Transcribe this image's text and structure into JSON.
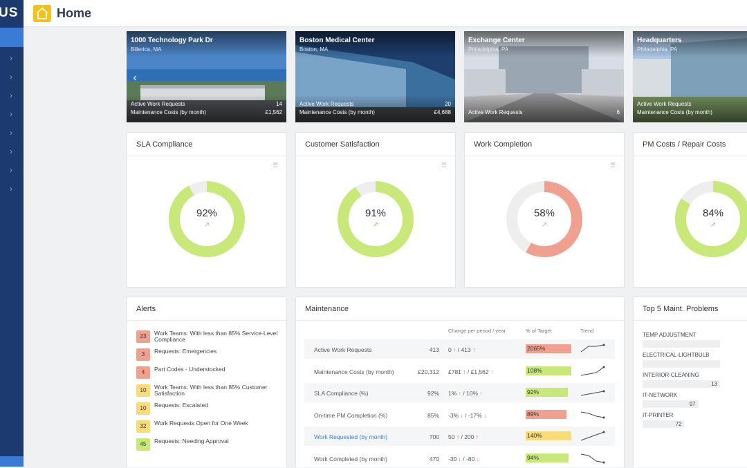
{
  "app": {
    "logo": "US",
    "page_title": "Home"
  },
  "buildings": [
    {
      "name": "1000 Technology Park Dr",
      "location": "Billerica, MA",
      "stats": [
        {
          "label": "Active Work Requests",
          "value": "14"
        },
        {
          "label": "Maintenance Costs (by month)",
          "value": "£1,562"
        }
      ]
    },
    {
      "name": "Boston Medical Center",
      "location": "Boston, MA",
      "stats": [
        {
          "label": "Active Work Requests",
          "value": "20"
        },
        {
          "label": "Maintenance Costs (by month)",
          "value": "£4,688"
        }
      ]
    },
    {
      "name": "Exchange Center",
      "location": "Philadelphia, PA",
      "stats": [
        {
          "label": "Active Work Requests",
          "value": "6"
        }
      ]
    },
    {
      "name": "Headquarters",
      "location": "Philadelphia, PA",
      "stats": [
        {
          "label": "Active Work Requests",
          "value": ""
        },
        {
          "label": "Maintenance Costs (by month)",
          "value": ""
        }
      ]
    }
  ],
  "kpis": [
    {
      "title": "SLA Compliance",
      "value": 92,
      "label": "92%",
      "color": "#c8e87a",
      "track": "#eeeeee"
    },
    {
      "title": "Customer Satisfaction",
      "value": 91,
      "label": "91%",
      "color": "#c8e87a",
      "track": "#eeeeee"
    },
    {
      "title": "Work Completion",
      "value": 58,
      "label": "58%",
      "color": "#f0a08f",
      "track": "#eeeeee"
    },
    {
      "title": "PM Costs / Repair Costs",
      "value": 84,
      "label": "84%",
      "color": "#c8e87a",
      "track": "#eeeeee"
    }
  ],
  "alerts": {
    "title": "Alerts",
    "items": [
      {
        "count": "23",
        "label": "Work Teams: With less than 85% Service-Level Compliance",
        "color": "#f0a08f"
      },
      {
        "count": "3",
        "label": "Requests: Emergencies",
        "color": "#f0a08f"
      },
      {
        "count": "4",
        "label": "Part Codes - Understocked",
        "color": "#f0a08f"
      },
      {
        "count": "10",
        "label": "Work Teams: With less than 85% Customer Satisfaction",
        "color": "#f7dc79"
      },
      {
        "count": "10",
        "label": "Requests: Escalated",
        "color": "#f7dc79"
      },
      {
        "count": "32",
        "label": "Work Requests Open for One Week",
        "color": "#f7dc79"
      },
      {
        "count": "45",
        "label": "Requests: Needing Approval",
        "color": "#c8e87a"
      }
    ]
  },
  "maintenance": {
    "title": "Maintenance",
    "col_change": "Change per period / year",
    "col_target": "% of Target",
    "col_trend": "Trend",
    "rows": [
      {
        "name": "Active Work Requests",
        "value": "413",
        "change": "0",
        "change_dir": "up",
        "year": "413",
        "year_dir": "up",
        "target": "2065%",
        "target_pct": 100,
        "target_color": "#f0a08f",
        "trend": [
          2,
          6,
          6,
          7
        ]
      },
      {
        "name": "Maintenance Costs (by month)",
        "value": "£20,312",
        "change": "£781",
        "change_dir": "up",
        "year": "£1,562",
        "year_dir": "up",
        "target": "108%",
        "target_pct": 100,
        "target_color": "#c8e87a",
        "trend": [
          1,
          2,
          3,
          7
        ]
      },
      {
        "name": "SLA Compliance (%)",
        "value": "92%",
        "change": "1%",
        "change_dir": "upg",
        "year": "10%",
        "year_dir": "upg",
        "target": "92%",
        "target_pct": 92,
        "target_color": "#c8e87a",
        "trend": [
          2,
          3,
          4,
          5
        ]
      },
      {
        "name": "On-time PM Completion (%)",
        "value": "85%",
        "change": "-3%",
        "change_dir": "down",
        "year": "-17%",
        "year_dir": "down",
        "target": "89%",
        "target_pct": 89,
        "target_color": "#f0a08f",
        "trend": [
          6,
          5,
          3,
          2
        ]
      },
      {
        "name": "Work Requested (by month)",
        "value": "700",
        "change": "50",
        "change_dir": "up",
        "year": "200",
        "year_dir": "up",
        "target": "140%",
        "target_pct": 100,
        "target_color": "#f7dc79",
        "trend": [
          1,
          3,
          5,
          7
        ],
        "link": true
      },
      {
        "name": "Work Completed (by month)",
        "value": "470",
        "change": "-30",
        "change_dir": "down",
        "year": "-80",
        "year_dir": "down",
        "target": "94%",
        "target_pct": 94,
        "target_color": "#c8e87a",
        "trend": [
          7,
          6,
          2,
          1
        ]
      }
    ]
  },
  "top5": {
    "title": "Top 5 Maint. Problems",
    "items": [
      {
        "label": "TEMP ADJUSTMENT",
        "value": "",
        "pct": 100
      },
      {
        "label": "ELECTRICAL-LIGHTBULB",
        "value": "",
        "pct": 100
      },
      {
        "label": "INTERIOR-CLEANING",
        "value": "13",
        "pct": 100
      },
      {
        "label": "IT-NETWORK",
        "value": "97",
        "pct": 72
      },
      {
        "label": "IT-PRINTER",
        "value": "72",
        "pct": 54
      }
    ]
  }
}
